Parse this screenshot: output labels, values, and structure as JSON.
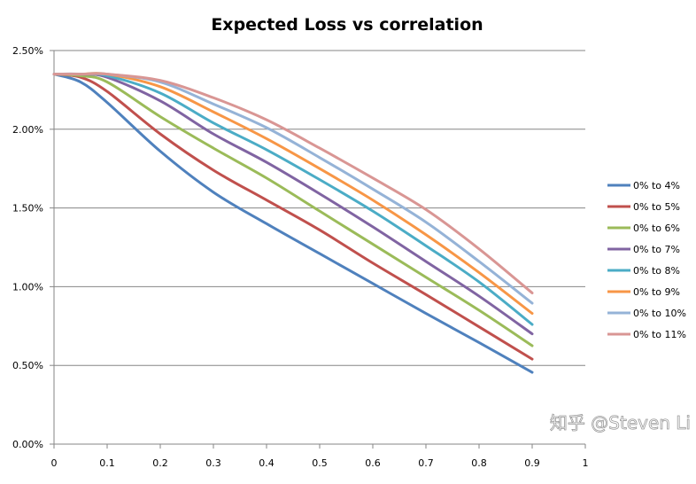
{
  "chart_data": {
    "type": "line",
    "title": "Expected Loss vs correlation",
    "xlabel": "",
    "ylabel": "",
    "xlim": [
      0,
      1
    ],
    "ylim": [
      0,
      2.5
    ],
    "x_ticks": [
      "0",
      "0.1",
      "0.2",
      "0.3",
      "0.4",
      "0.5",
      "0.6",
      "0.7",
      "0.8",
      "0.9",
      "1"
    ],
    "y_ticks": [
      "0.00%",
      "0.50%",
      "1.00%",
      "1.50%",
      "2.00%",
      "2.50%"
    ],
    "y_unit": "%",
    "grid": "horizontal",
    "legend_position": "right",
    "x": [
      0,
      0.05,
      0.1,
      0.2,
      0.3,
      0.4,
      0.5,
      0.6,
      0.7,
      0.8,
      0.9
    ],
    "series": [
      {
        "name": "0% to 4%",
        "color": "#4F81BD",
        "values": [
          2.35,
          2.3,
          2.17,
          1.86,
          1.6,
          1.4,
          1.21,
          1.02,
          0.83,
          0.645,
          0.456
        ]
      },
      {
        "name": "0% to 5%",
        "color": "#C0504D",
        "values": [
          2.35,
          2.33,
          2.24,
          1.97,
          1.74,
          1.55,
          1.36,
          1.15,
          0.95,
          0.745,
          0.54
        ]
      },
      {
        "name": "0% to 6%",
        "color": "#9BBB59",
        "values": [
          2.35,
          2.34,
          2.3,
          2.08,
          1.88,
          1.69,
          1.48,
          1.27,
          1.06,
          0.85,
          0.625
        ]
      },
      {
        "name": "0% to 7%",
        "color": "#8064A2",
        "values": [
          2.35,
          2.35,
          2.33,
          2.18,
          1.97,
          1.79,
          1.59,
          1.38,
          1.16,
          0.94,
          0.7
        ]
      },
      {
        "name": "0% to 8%",
        "color": "#4BACC6",
        "values": [
          2.35,
          2.35,
          2.34,
          2.23,
          2.04,
          1.87,
          1.68,
          1.48,
          1.26,
          1.03,
          0.76
        ]
      },
      {
        "name": "0% to 9%",
        "color": "#F79646",
        "values": [
          2.35,
          2.35,
          2.35,
          2.27,
          2.11,
          1.94,
          1.75,
          1.55,
          1.33,
          1.09,
          0.83
        ]
      },
      {
        "name": "0% to 10%",
        "color": "#95B3D7",
        "values": [
          2.35,
          2.35,
          2.35,
          2.3,
          2.16,
          2.01,
          1.82,
          1.62,
          1.41,
          1.16,
          0.895
        ]
      },
      {
        "name": "0% to 11%",
        "color": "#D99694",
        "values": [
          2.35,
          2.35,
          2.35,
          2.31,
          2.2,
          2.06,
          1.88,
          1.69,
          1.49,
          1.24,
          0.96
        ]
      }
    ]
  },
  "watermark": "知乎 @Steven Li"
}
